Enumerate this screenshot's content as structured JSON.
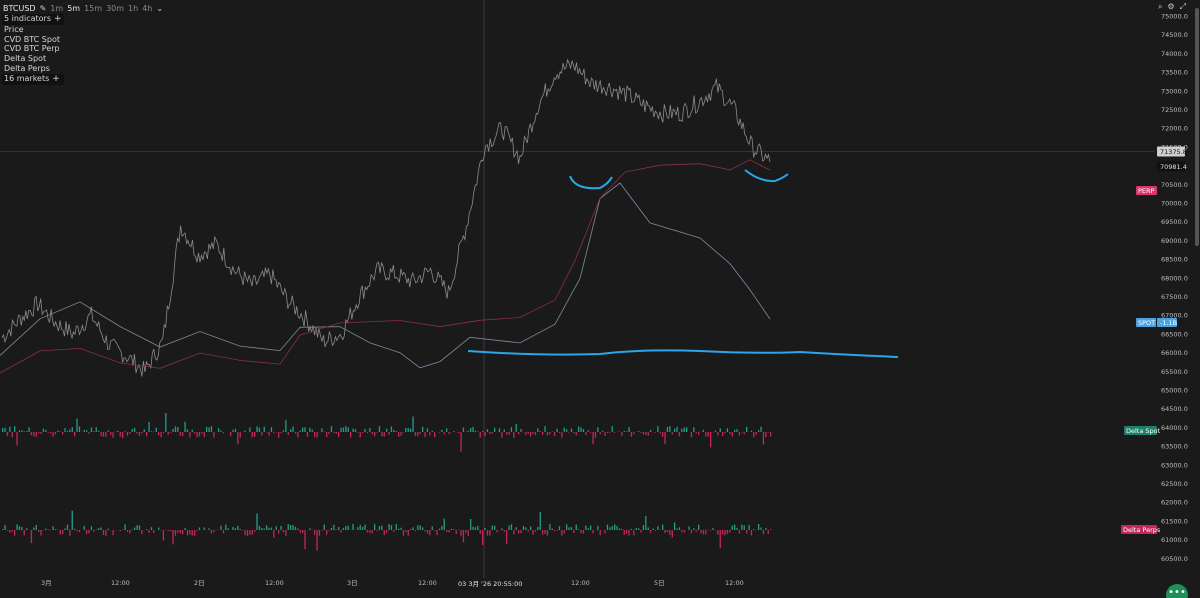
{
  "toolbar": {
    "symbol": "BTCUSD",
    "timeframes": [
      "1m",
      "5m",
      "15m",
      "30m",
      "1h",
      "4h"
    ],
    "active_timeframe": "5m"
  },
  "indicators_panel": {
    "count_label": "5 indicators",
    "items": [
      "Price",
      "CVD BTC Spot",
      "CVD BTC Perp",
      "Delta Spot",
      "Delta Perps"
    ],
    "markets_label": "16 markets"
  },
  "icons": [
    "search-icon",
    "gear-icon",
    "expand-icon",
    "pencil-icon",
    "chevron-down-icon",
    "menu-icon"
  ],
  "colors": {
    "background": "#1a1a1a",
    "price_line": "#8c8c8c",
    "cvd_spot": "#7e8aa0",
    "cvd_perp": "#8a3040",
    "drawing": "#2aa7e8",
    "delta_up": "#1f9e8a",
    "delta_down": "#c2285a",
    "perp_badge": "#d9366a",
    "spot_badge": "#4aa4e3",
    "delta_spot_badge": "#1f7f6e",
    "delta_perps_badge": "#c2285a"
  },
  "chart_data": {
    "type": "line",
    "price_axis": {
      "ticks": [
        "75000.0",
        "74500.0",
        "74000.0",
        "73500.0",
        "73000.0",
        "72500.0",
        "72000.0",
        "71500.0",
        "70500.0",
        "70000.0",
        "69500.0",
        "69000.0",
        "68500.0",
        "68000.0",
        "67500.0",
        "67000.0",
        "66500.0",
        "66000.0",
        "65500.0",
        "65000.0",
        "64500.0",
        "64000.0",
        "63500.0",
        "63000.0",
        "62500.0",
        "62000.0",
        "61500.0",
        "61000.0",
        "60500.0"
      ],
      "current_price_label": "71375.8",
      "secondary_label": "70981.4"
    },
    "time_axis": {
      "labels": [
        "3月",
        "12:00",
        "2日",
        "12:00",
        "3日",
        "12:00",
        "12:00",
        "5日",
        "12:00"
      ],
      "crosshair_label": "03 3月 '26  20:55:00"
    },
    "series": [
      {
        "name": "Price",
        "values": [
          66400,
          66900,
          67300,
          66800,
          66500,
          67000,
          66200,
          65900,
          65500,
          66300,
          69400,
          68600,
          68900,
          68200,
          67800,
          68100,
          67400,
          66900,
          66300,
          66500,
          67500,
          68200,
          68100,
          67900,
          68200,
          67600,
          69400,
          71500,
          72000,
          71200,
          72600,
          73500,
          73700,
          73200,
          73100,
          72900,
          72600,
          72400,
          72400,
          72700,
          73100,
          72500,
          71500,
          71100
        ]
      },
      {
        "name": "CVD BTC Spot",
        "values": []
      },
      {
        "name": "CVD BTC Perp",
        "values": []
      },
      {
        "name": "Delta Spot",
        "values": []
      },
      {
        "name": "Delta Perps",
        "values": []
      }
    ],
    "badges": {
      "perp": "PERP",
      "spot": "SPOT",
      "spot_value": "-1.1B",
      "delta_spot": "Delta Spot",
      "delta_perps": "Delta Perps"
    },
    "fab_label": "•••"
  }
}
